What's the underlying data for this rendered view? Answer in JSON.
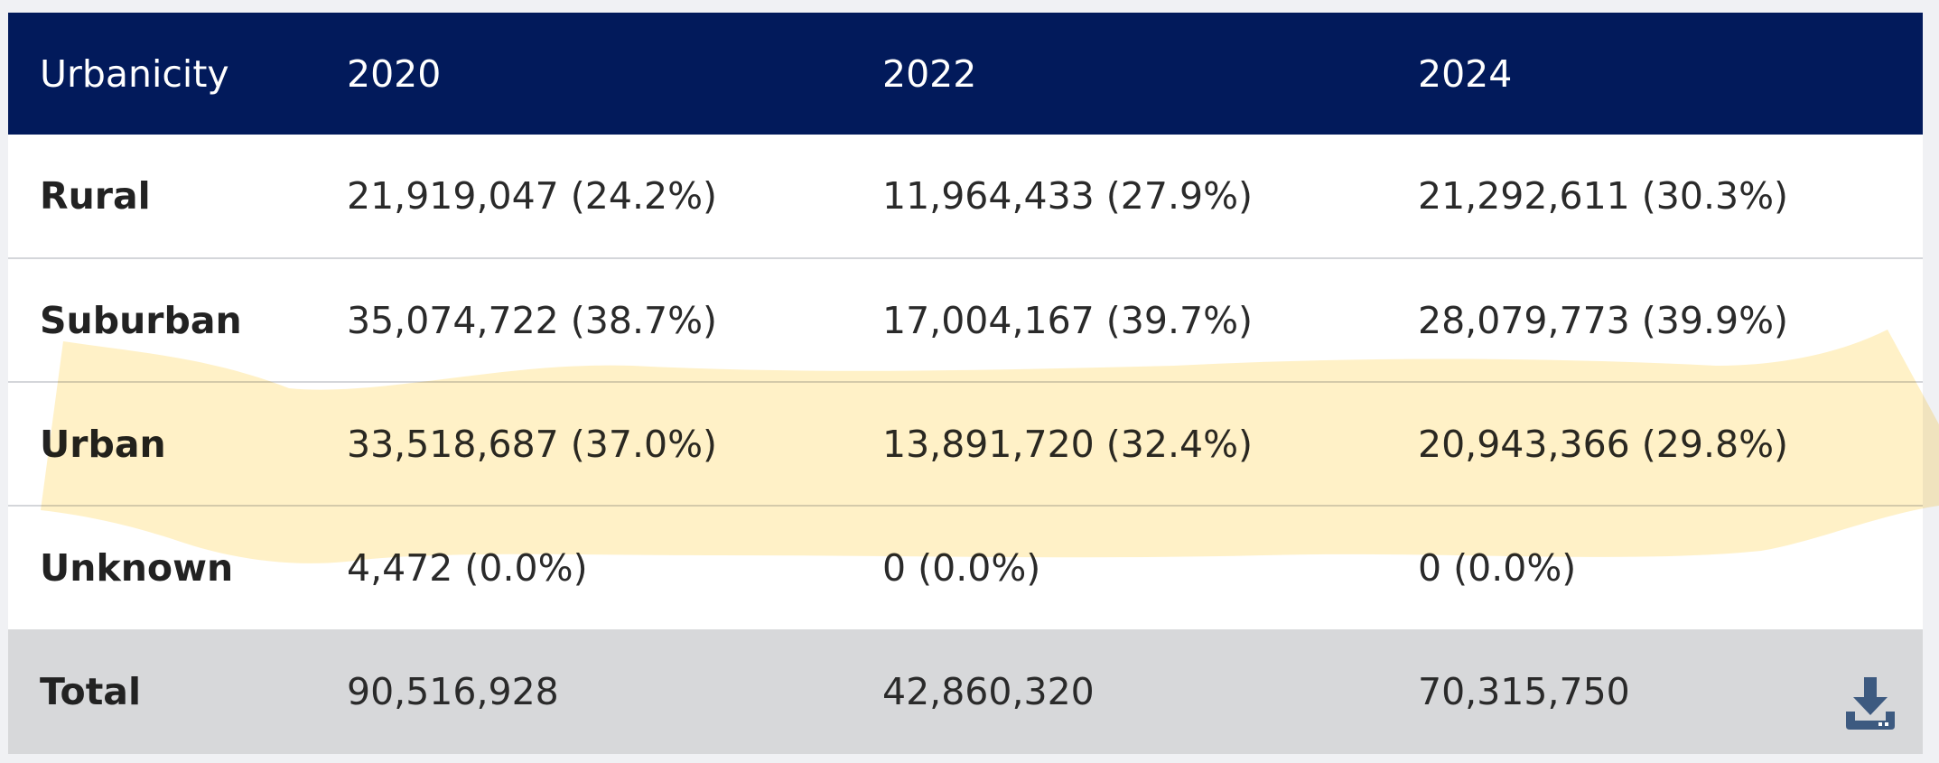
{
  "table": {
    "headers": [
      "Urbanicity",
      "2020",
      "2022",
      "2024"
    ],
    "rows": [
      {
        "label": "Rural",
        "c2020": "21,919,047 (24.2%)",
        "c2022": "11,964,433 (27.9%)",
        "c2024": "21,292,611 (30.3%)"
      },
      {
        "label": "Suburban",
        "c2020": "35,074,722 (38.7%)",
        "c2022": "17,004,167 (39.7%)",
        "c2024": "28,079,773 (39.9%)"
      },
      {
        "label": "Urban",
        "c2020": "33,518,687 (37.0%)",
        "c2022": "13,891,720 (32.4%)",
        "c2024": "20,943,366 (29.8%)"
      },
      {
        "label": "Unknown",
        "c2020": "4,472 (0.0%)",
        "c2022": "0 (0.0%)",
        "c2024": "0 (0.0%)"
      }
    ],
    "total": {
      "label": "Total",
      "c2020": "90,516,928",
      "c2022": "42,860,320",
      "c2024": "70,315,750"
    }
  },
  "icons": {
    "download": "download-icon"
  },
  "colors": {
    "header_bg": "#021a5b",
    "total_bg": "#d7d8da",
    "highlight": "#fff0c4",
    "download_icon": "#3d5a80"
  }
}
